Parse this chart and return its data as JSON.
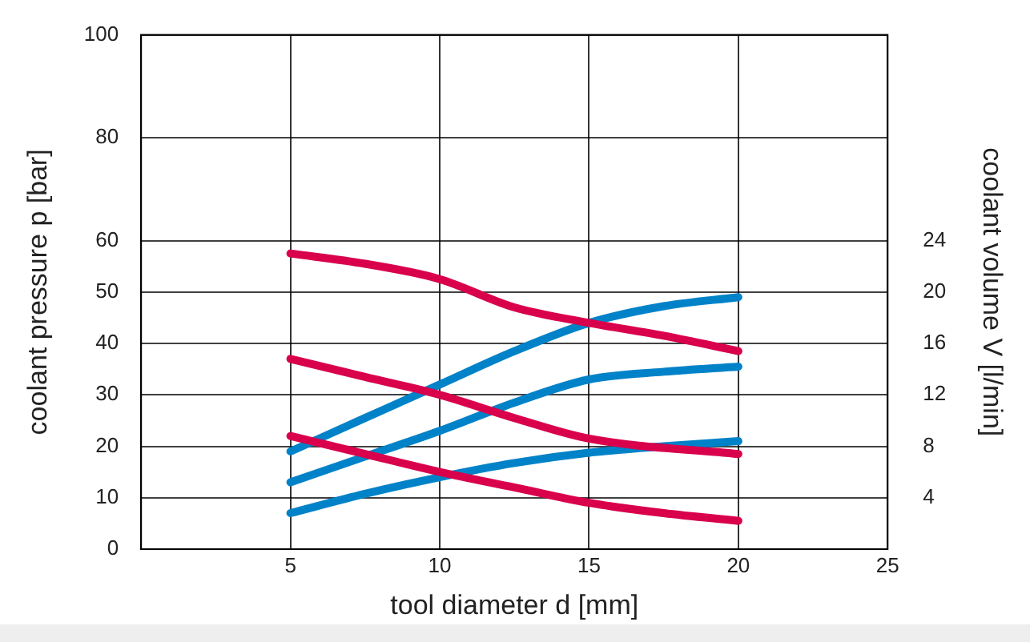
{
  "chart_data": {
    "type": "line",
    "xlabel": "tool diameter d [mm]",
    "ylabel": "coolant pressure p [bar]",
    "y2label": "coolant volume V [l/min]",
    "x": [
      5,
      7.5,
      10,
      12.5,
      15,
      17.5,
      20
    ],
    "series": [
      {
        "color": "#d9004c",
        "values": [
          57.5,
          55.5,
          52.5,
          47,
          44,
          41.5,
          38.5
        ]
      },
      {
        "color": "#d9004c",
        "x": [
          5,
          7.5,
          10,
          12.5,
          15,
          20
        ],
        "values": [
          37,
          33.5,
          30,
          25.5,
          21.5,
          18.5
        ]
      },
      {
        "color": "#d9004c",
        "values": [
          22,
          18.5,
          15,
          12,
          9,
          7,
          5.5
        ]
      },
      {
        "color": "#0082c8",
        "axis": "y2",
        "values": [
          7.6,
          10.2,
          12.8,
          15.4,
          17.6,
          18.9,
          19.6
        ]
      },
      {
        "color": "#0082c8",
        "axis": "y2",
        "values": [
          5.2,
          7.2,
          9.2,
          11.4,
          13.2,
          13.8,
          14.2
        ]
      },
      {
        "color": "#0082c8",
        "axis": "y2",
        "values": [
          2.8,
          4.3,
          5.6,
          6.7,
          7.5,
          8,
          8.4
        ]
      }
    ],
    "xlim": [
      0,
      25
    ],
    "xticks": [
      5,
      10,
      15,
      20,
      25
    ],
    "ylim": [
      0,
      100
    ],
    "yticks": [
      0,
      10,
      20,
      30,
      40,
      50,
      60,
      80,
      100
    ],
    "y2lim": [
      0,
      40
    ],
    "y2ticks": [
      4,
      8,
      12,
      16,
      20,
      24
    ],
    "grid": true,
    "legend": false,
    "marker": "none",
    "line_style": "solid"
  }
}
